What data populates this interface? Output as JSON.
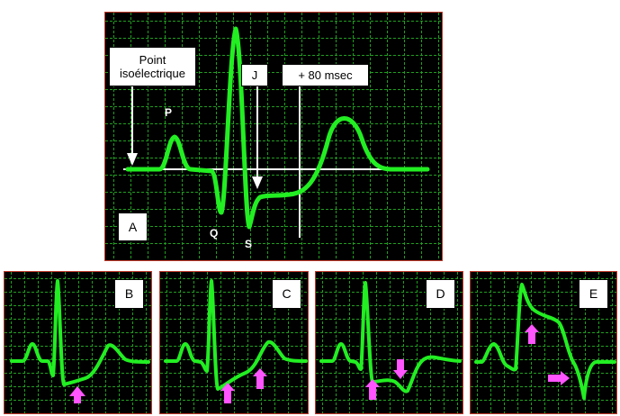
{
  "main_panel": {
    "letter": "A",
    "point_label": "Point\nisoélectrique",
    "j_label": "J",
    "msec_label": "+ 80 msec",
    "p_label": "P",
    "q_label": "Q",
    "s_label": "S"
  },
  "panels": [
    {
      "letter": "B",
      "description_arrows": "up-arrow"
    },
    {
      "letter": "C",
      "description_arrows": "up-arrows"
    },
    {
      "letter": "D",
      "description_arrows": "up-and-down-arrows"
    },
    {
      "letter": "E",
      "description_arrows": "up-and-right-arrows"
    }
  ],
  "colors": {
    "trace": "#22ee22",
    "grid": "#1f9f1f",
    "background": "#000000",
    "panel_border": "#c0392b",
    "arrow": "#ff55ff",
    "baseline": "#ffffff"
  }
}
